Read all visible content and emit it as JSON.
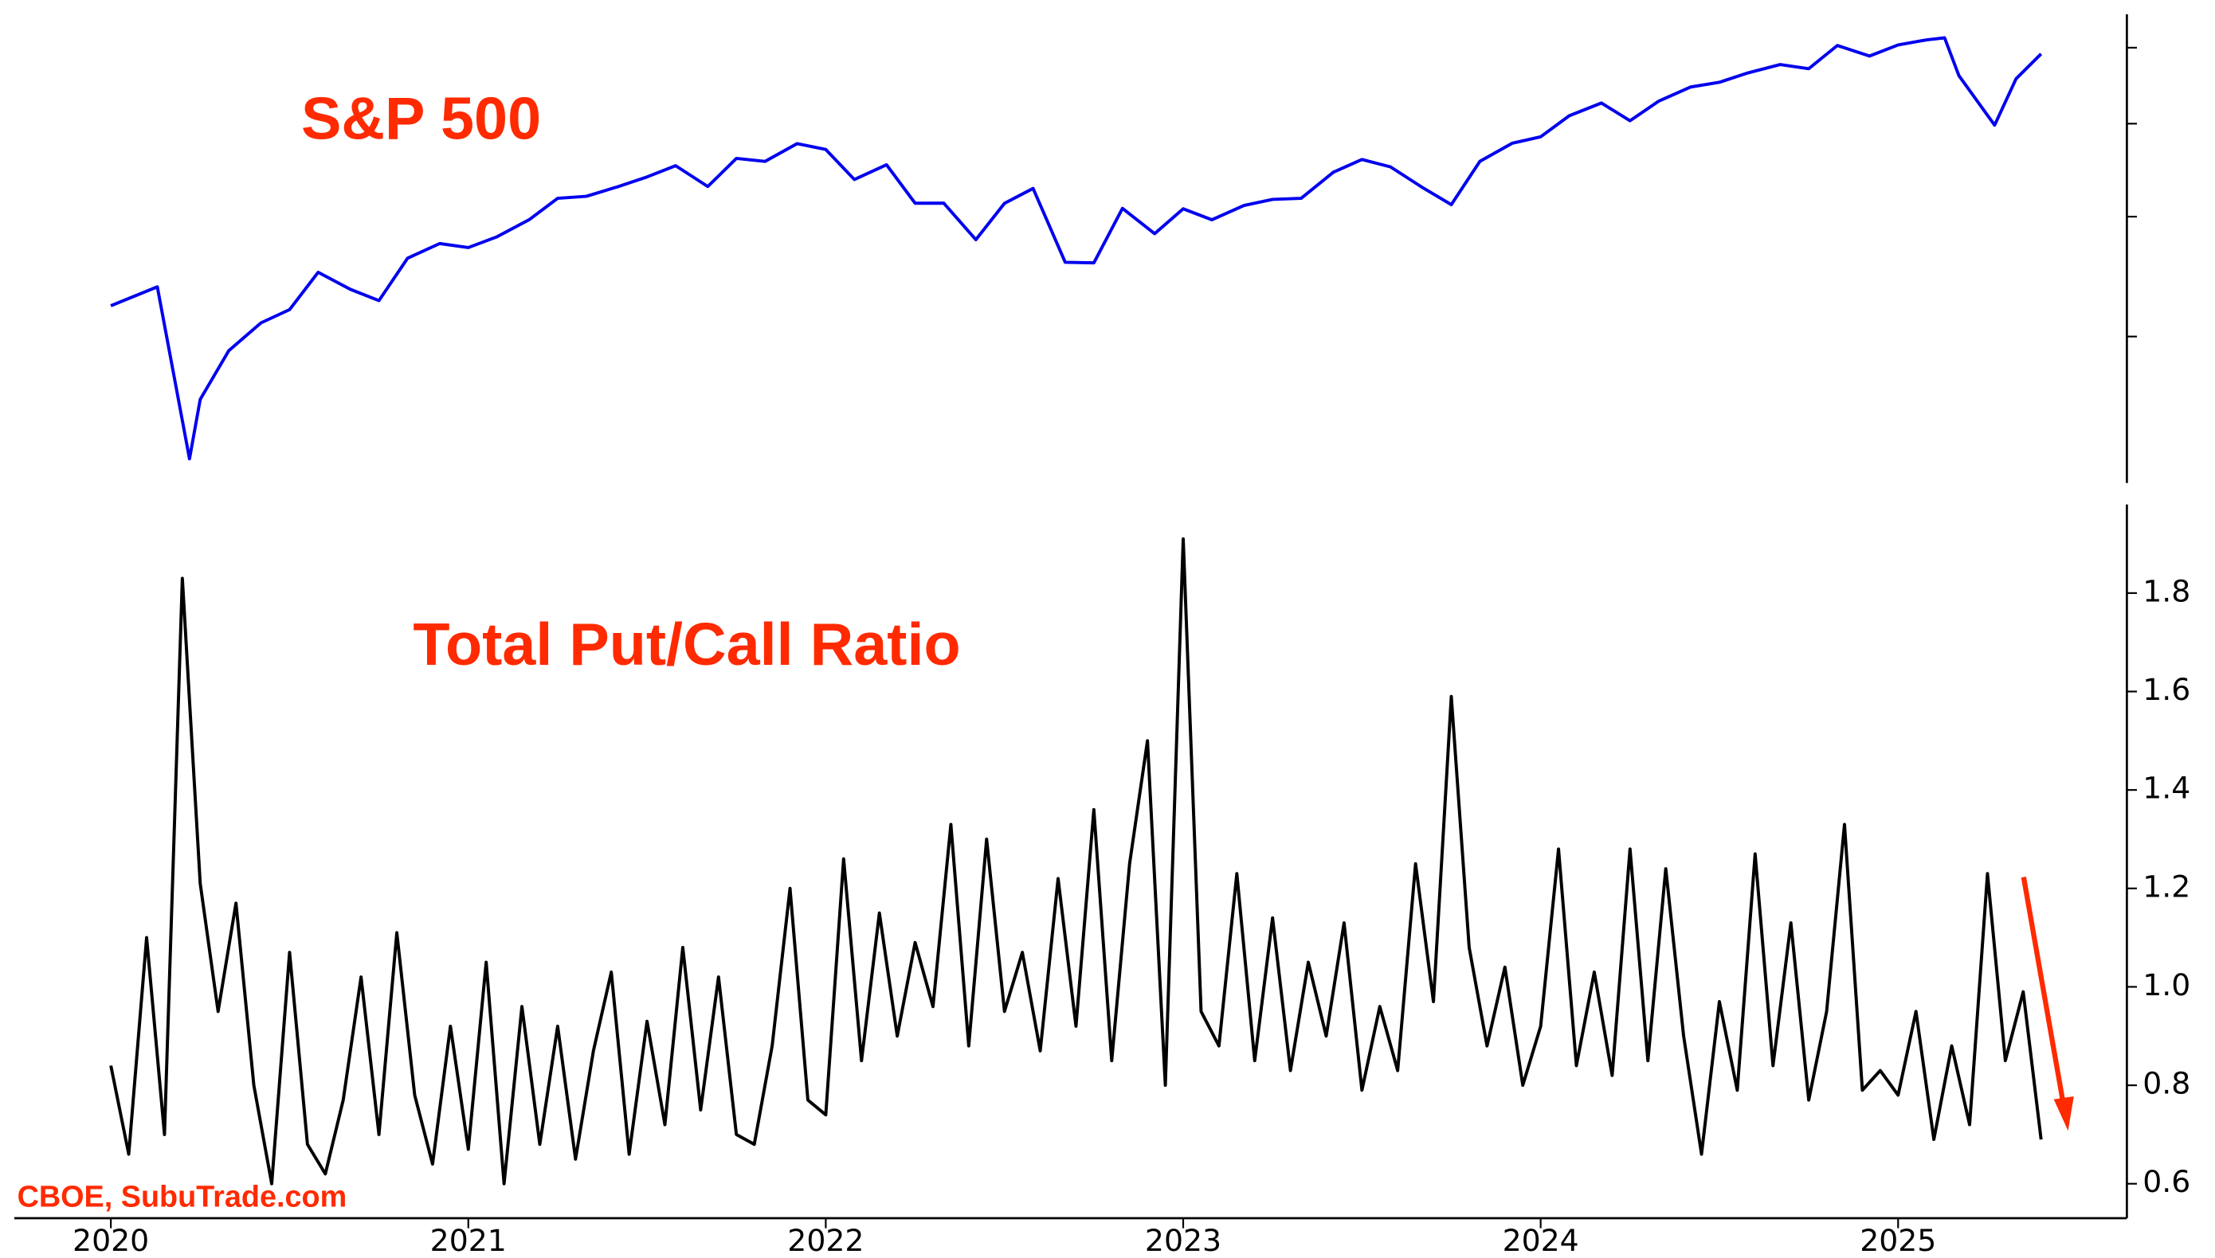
{
  "chart_data": [
    {
      "type": "line",
      "title": "S&P 500",
      "log_y": true,
      "x": [
        2020.0,
        2020.13,
        2020.22,
        2020.25,
        2020.33,
        2020.42,
        2020.5,
        2020.58,
        2020.67,
        2020.75,
        2020.83,
        2020.92,
        2021.0,
        2021.08,
        2021.17,
        2021.25,
        2021.33,
        2021.42,
        2021.5,
        2021.58,
        2021.67,
        2021.75,
        2021.83,
        2021.92,
        2022.0,
        2022.08,
        2022.17,
        2022.25,
        2022.33,
        2022.42,
        2022.5,
        2022.58,
        2022.67,
        2022.75,
        2022.83,
        2022.92,
        2023.0,
        2023.08,
        2023.17,
        2023.25,
        2023.33,
        2023.42,
        2023.5,
        2023.58,
        2023.67,
        2023.75,
        2023.83,
        2023.92,
        2024.0,
        2024.08,
        2024.17,
        2024.25,
        2024.33,
        2024.42,
        2024.5,
        2024.58,
        2024.67,
        2024.75,
        2024.83,
        2024.92,
        2025.0,
        2025.08,
        2025.13,
        2025.17,
        2025.27,
        2025.33,
        2025.4
      ],
      "series": [
        {
          "name": "S&P 500",
          "color": "#0000ee",
          "values": [
            3230,
            3380,
            2237,
            2580,
            2900,
            3100,
            3200,
            3500,
            3360,
            3270,
            3620,
            3750,
            3714,
            3811,
            3970,
            4180,
            4200,
            4300,
            4400,
            4520,
            4300,
            4600,
            4567,
            4766,
            4700,
            4373,
            4530,
            4131,
            4132,
            3785,
            4130,
            4280,
            3585,
            3580,
            4080,
            3840,
            4076,
            3970,
            4109,
            4169,
            4180,
            4450,
            4588,
            4507,
            4288,
            4117,
            4568,
            4770,
            4845,
            5096,
            5254,
            5035,
            5277,
            5460,
            5522,
            5648,
            5762,
            5705,
            6032,
            5881,
            6040,
            6114,
            6144,
            5611,
            4982,
            5569,
            5911
          ]
        }
      ],
      "xlim": [
        2019.73,
        2025.64
      ],
      "ylim": [
        2111,
        6500
      ],
      "yticks": [
        3000,
        4000,
        5000,
        6000
      ]
    },
    {
      "type": "line",
      "title": "Total Put/Call Ratio",
      "annotations": [
        "CBOE, SubuTrade.com"
      ],
      "x": [
        2020.0,
        2020.05,
        2020.1,
        2020.15,
        2020.2,
        2020.25,
        2020.3,
        2020.35,
        2020.4,
        2020.45,
        2020.5,
        2020.55,
        2020.6,
        2020.65,
        2020.7,
        2020.75,
        2020.8,
        2020.85,
        2020.9,
        2020.95,
        2021.0,
        2021.05,
        2021.1,
        2021.15,
        2021.2,
        2021.25,
        2021.3,
        2021.35,
        2021.4,
        2021.45,
        2021.5,
        2021.55,
        2021.6,
        2021.65,
        2021.7,
        2021.75,
        2021.8,
        2021.85,
        2021.9,
        2021.95,
        2022.0,
        2022.05,
        2022.1,
        2022.15,
        2022.2,
        2022.25,
        2022.3,
        2022.35,
        2022.4,
        2022.45,
        2022.5,
        2022.55,
        2022.6,
        2022.65,
        2022.7,
        2022.75,
        2022.8,
        2022.85,
        2022.9,
        2022.95,
        2023.0,
        2023.05,
        2023.1,
        2023.15,
        2023.2,
        2023.25,
        2023.3,
        2023.35,
        2023.4,
        2023.45,
        2023.5,
        2023.55,
        2023.6,
        2023.65,
        2023.7,
        2023.75,
        2023.8,
        2023.85,
        2023.9,
        2023.95,
        2024.0,
        2024.05,
        2024.1,
        2024.15,
        2024.2,
        2024.25,
        2024.3,
        2024.35,
        2024.4,
        2024.45,
        2024.5,
        2024.55,
        2024.6,
        2024.65,
        2024.7,
        2024.75,
        2024.8,
        2024.85,
        2024.9,
        2024.95,
        2025.0,
        2025.05,
        2025.1,
        2025.15,
        2025.2,
        2025.25,
        2025.3,
        2025.35,
        2025.4
      ],
      "series": [
        {
          "name": "Total Put/Call Ratio",
          "color": "#000000",
          "values": [
            0.84,
            0.66,
            1.1,
            0.7,
            1.83,
            1.21,
            0.95,
            1.17,
            0.8,
            0.6,
            1.07,
            0.68,
            0.62,
            0.77,
            1.02,
            0.7,
            1.11,
            0.78,
            0.64,
            0.92,
            0.67,
            1.05,
            0.6,
            0.96,
            0.68,
            0.92,
            0.65,
            0.87,
            1.03,
            0.66,
            0.93,
            0.72,
            1.08,
            0.75,
            1.02,
            0.7,
            0.68,
            0.88,
            1.2,
            0.77,
            0.74,
            1.26,
            0.85,
            1.15,
            0.9,
            1.09,
            0.96,
            1.33,
            0.88,
            1.3,
            0.95,
            1.07,
            0.87,
            1.22,
            0.92,
            1.36,
            0.85,
            1.25,
            1.5,
            0.8,
            1.91,
            0.95,
            0.88,
            1.23,
            0.85,
            1.14,
            0.83,
            1.05,
            0.9,
            1.13,
            0.79,
            0.96,
            0.83,
            1.25,
            0.97,
            1.59,
            1.08,
            0.88,
            1.04,
            0.8,
            0.92,
            1.28,
            0.84,
            1.03,
            0.82,
            1.28,
            0.85,
            1.24,
            0.9,
            0.66,
            0.97,
            0.79,
            1.27,
            0.84,
            1.13,
            0.77,
            0.95,
            1.33,
            0.79,
            0.83,
            0.78,
            0.95,
            0.69,
            0.88,
            0.72,
            1.23,
            0.85,
            0.99,
            0.69
          ]
        }
      ],
      "xlim": [
        2019.73,
        2025.64
      ],
      "ylim": [
        0.53,
        1.98
      ],
      "xticks": [
        2020,
        2021,
        2022,
        2023,
        2024,
        2025
      ],
      "yticks": [
        0.6,
        0.8,
        {
          "value": 1.0,
          "label": "1.0"
        },
        1.2,
        1.4,
        1.6,
        1.8
      ]
    }
  ]
}
